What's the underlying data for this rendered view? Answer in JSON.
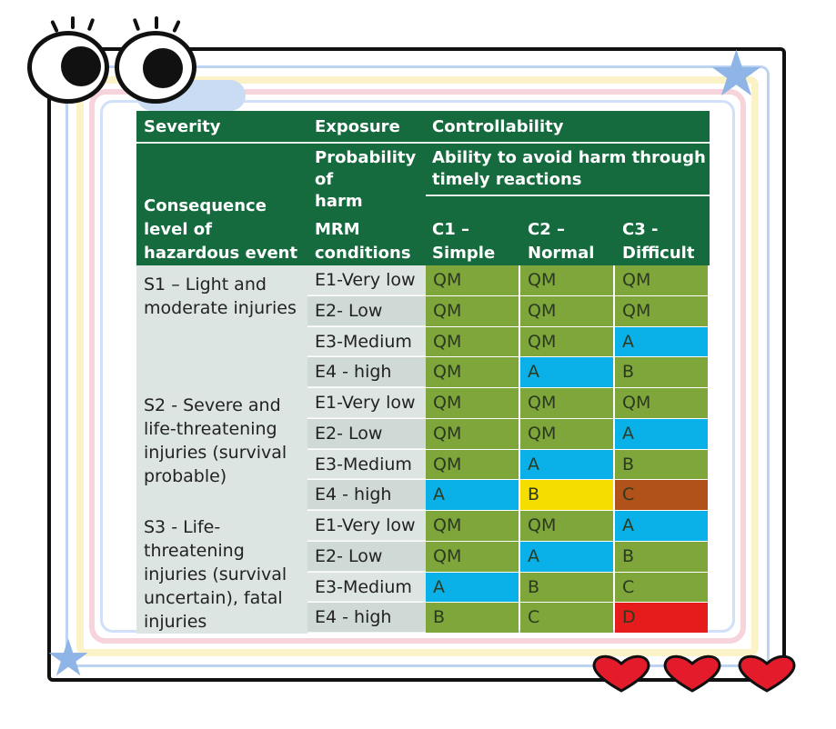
{
  "table": {
    "header": {
      "severity": "Severity",
      "exposure": "Exposure",
      "controllability": "Controllability",
      "probability_lines": [
        "Probability",
        "of",
        "harm"
      ],
      "ability_lines": [
        "Ability to avoid harm through",
        "timely reactions"
      ],
      "consequence_lines": [
        "Consequence",
        "level of",
        "hazardous event"
      ],
      "mrm_lines": [
        "MRM",
        "conditions"
      ],
      "c1_lines": [
        "C1 –",
        "Simple"
      ],
      "c2_lines": [
        "C2 –",
        "Normal"
      ],
      "c3_lines": [
        "C3 -",
        "Difficult"
      ]
    },
    "groups": [
      {
        "severity_lines": [
          "S1 – Light and",
          "moderate injuries"
        ]
      },
      {
        "severity_lines": [
          "S2 - Severe and",
          "life-threatening",
          "injuries (survival",
          "probable)"
        ]
      },
      {
        "severity_lines": [
          "S3 - Life-",
          "threatening",
          "injuries (survival",
          "uncertain), fatal",
          "injuries"
        ]
      }
    ],
    "rows": [
      {
        "exposure": "E1-Very low",
        "c1": "QM",
        "c2": "QM",
        "c3": "QM"
      },
      {
        "exposure": "E2- Low",
        "c1": "QM",
        "c2": "QM",
        "c3": "QM"
      },
      {
        "exposure": "E3-Medium",
        "c1": "QM",
        "c2": "QM",
        "c3": "A"
      },
      {
        "exposure": "E4 - high",
        "c1": "QM",
        "c2": "A",
        "c3": "B"
      },
      {
        "exposure": "E1-Very low",
        "c1": "QM",
        "c2": "QM",
        "c3": "QM"
      },
      {
        "exposure": "E2- Low",
        "c1": "QM",
        "c2": "QM",
        "c3": "A"
      },
      {
        "exposure": "E3-Medium",
        "c1": "QM",
        "c2": "A",
        "c3": "B"
      },
      {
        "exposure": "E4 - high",
        "c1": "A",
        "c2": "B",
        "c3": "C"
      },
      {
        "exposure": "E1-Very low",
        "c1": "QM",
        "c2": "QM",
        "c3": "A"
      },
      {
        "exposure": "E2- Low",
        "c1": "QM",
        "c2": "A",
        "c3": "B"
      },
      {
        "exposure": "E3-Medium",
        "c1": "A",
        "c2": "B",
        "c3": "C"
      },
      {
        "exposure": "E4 - high",
        "c1": "B",
        "c2": "C",
        "c3": "D"
      }
    ]
  },
  "colors": {
    "header_green": "#166b3e",
    "QM": "#7fa63a",
    "A": "#0ab0e8",
    "B_default": "#7fa63a",
    "B_highlight": "#f6dd00",
    "C_default": "#7fa63a",
    "C_highlight": "#b0521a",
    "D": "#e61c1c"
  },
  "decorations": {
    "eyes": "cartoon-eyes-icon",
    "stars": "star-icon",
    "hearts": "heart-icon"
  }
}
